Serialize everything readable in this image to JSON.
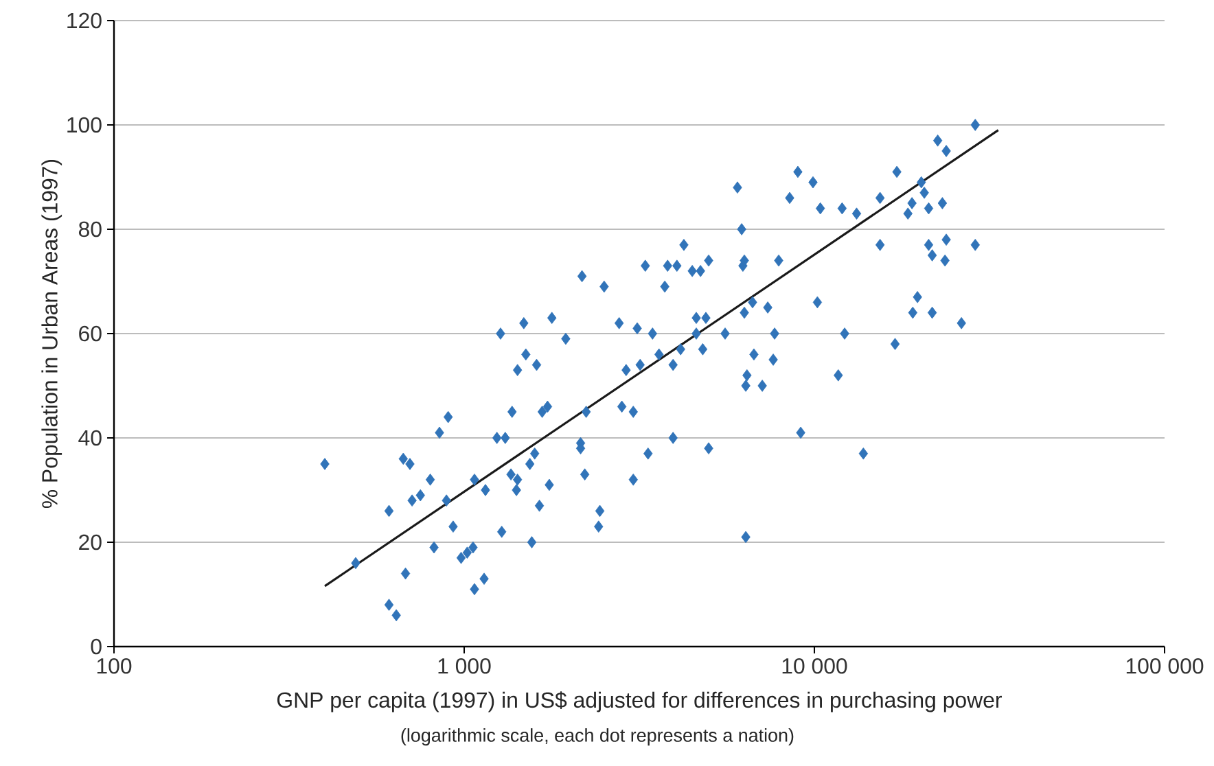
{
  "chart_data": {
    "type": "scatter",
    "xlabel": "GNP per capita (1997) in US$ adjusted for differences in purchasing power",
    "ylabel": "% Population in Urban Areas (1997)",
    "annotations": [
      "(logarithmic scale, each dot represents a nation)"
    ],
    "log": "x",
    "grid": "y",
    "xlim": [
      100,
      100000
    ],
    "ylim": [
      0,
      120
    ],
    "xticks": [
      100,
      {
        "value": 1000,
        "label": "1 000"
      },
      {
        "value": 10000,
        "label": "10 000"
      },
      {
        "value": 100000,
        "label": "100 000"
      }
    ],
    "yticks": [
      0,
      20,
      40,
      60,
      80,
      100,
      120
    ],
    "series": [
      {
        "color": "#3174b9",
        "marker": "diamond",
        "x": [
          400,
          490,
          610,
          640,
          610,
          680,
          670,
          700,
          710,
          750,
          800,
          820,
          850,
          890,
          900,
          930,
          980,
          1020,
          1060,
          1070,
          1070,
          1140,
          1150,
          1240,
          1270,
          1280,
          1310,
          1360,
          1370,
          1410,
          1420,
          1420,
          1480,
          1500,
          1540,
          1560,
          1590,
          1610,
          1640,
          1670,
          1730,
          1750,
          1780,
          1950,
          2170,
          2150,
          2150,
          2230,
          2210,
          2420,
          2440,
          2510,
          2770,
          2820,
          2900,
          3040,
          3040,
          3120,
          3180,
          3290,
          3350,
          3450,
          3600,
          3740,
          3810,
          3950,
          3950,
          4050,
          4150,
          4240,
          4480,
          4600,
          4600,
          4730,
          4800,
          4900,
          4990,
          4990,
          5560,
          6030,
          6200,
          6250,
          6310,
          6310,
          6370,
          6420,
          6370,
          6660,
          6720,
          7100,
          7360,
          7700,
          7630,
          7910,
          8500,
          8970,
          9140,
          9910,
          10400,
          10200,
          11700,
          12200,
          12000,
          13200,
          13800,
          15400,
          15400,
          17200,
          17000,
          18500,
          19000,
          19100,
          19700,
          20200,
          20600,
          21200,
          21200,
          21700,
          21700,
          22500,
          23200,
          23600,
          23800,
          23800,
          26300,
          28800,
          28800
        ],
        "values": [
          35,
          16,
          8,
          6,
          26,
          14,
          36,
          35,
          28,
          29,
          32,
          19,
          41,
          28,
          44,
          23,
          17,
          18,
          19,
          11,
          32,
          13,
          30,
          40,
          60,
          22,
          40,
          33,
          45,
          30,
          32,
          53,
          62,
          56,
          35,
          20,
          37,
          54,
          27,
          45,
          46,
          31,
          63,
          59,
          71,
          39,
          38,
          45,
          33,
          23,
          26,
          69,
          62,
          46,
          53,
          32,
          45,
          61,
          54,
          73,
          37,
          60,
          56,
          69,
          73,
          54,
          40,
          73,
          57,
          77,
          72,
          60,
          63,
          72,
          57,
          63,
          38,
          74,
          60,
          88,
          80,
          73,
          74,
          64,
          50,
          52,
          21,
          66,
          56,
          50,
          65,
          60,
          55,
          74,
          86,
          91,
          41,
          89,
          84,
          66,
          52,
          60,
          84,
          83,
          37,
          86,
          77,
          91,
          58,
          83,
          85,
          64,
          67,
          89,
          87,
          84,
          77,
          75,
          64,
          97,
          85,
          74,
          95,
          78,
          62,
          100,
          77
        ]
      },
      {
        "type": "line",
        "color": "#1a1a1a",
        "marker": "none",
        "x": [
          400,
          33500
        ],
        "values": [
          11.6,
          99
        ]
      }
    ]
  }
}
